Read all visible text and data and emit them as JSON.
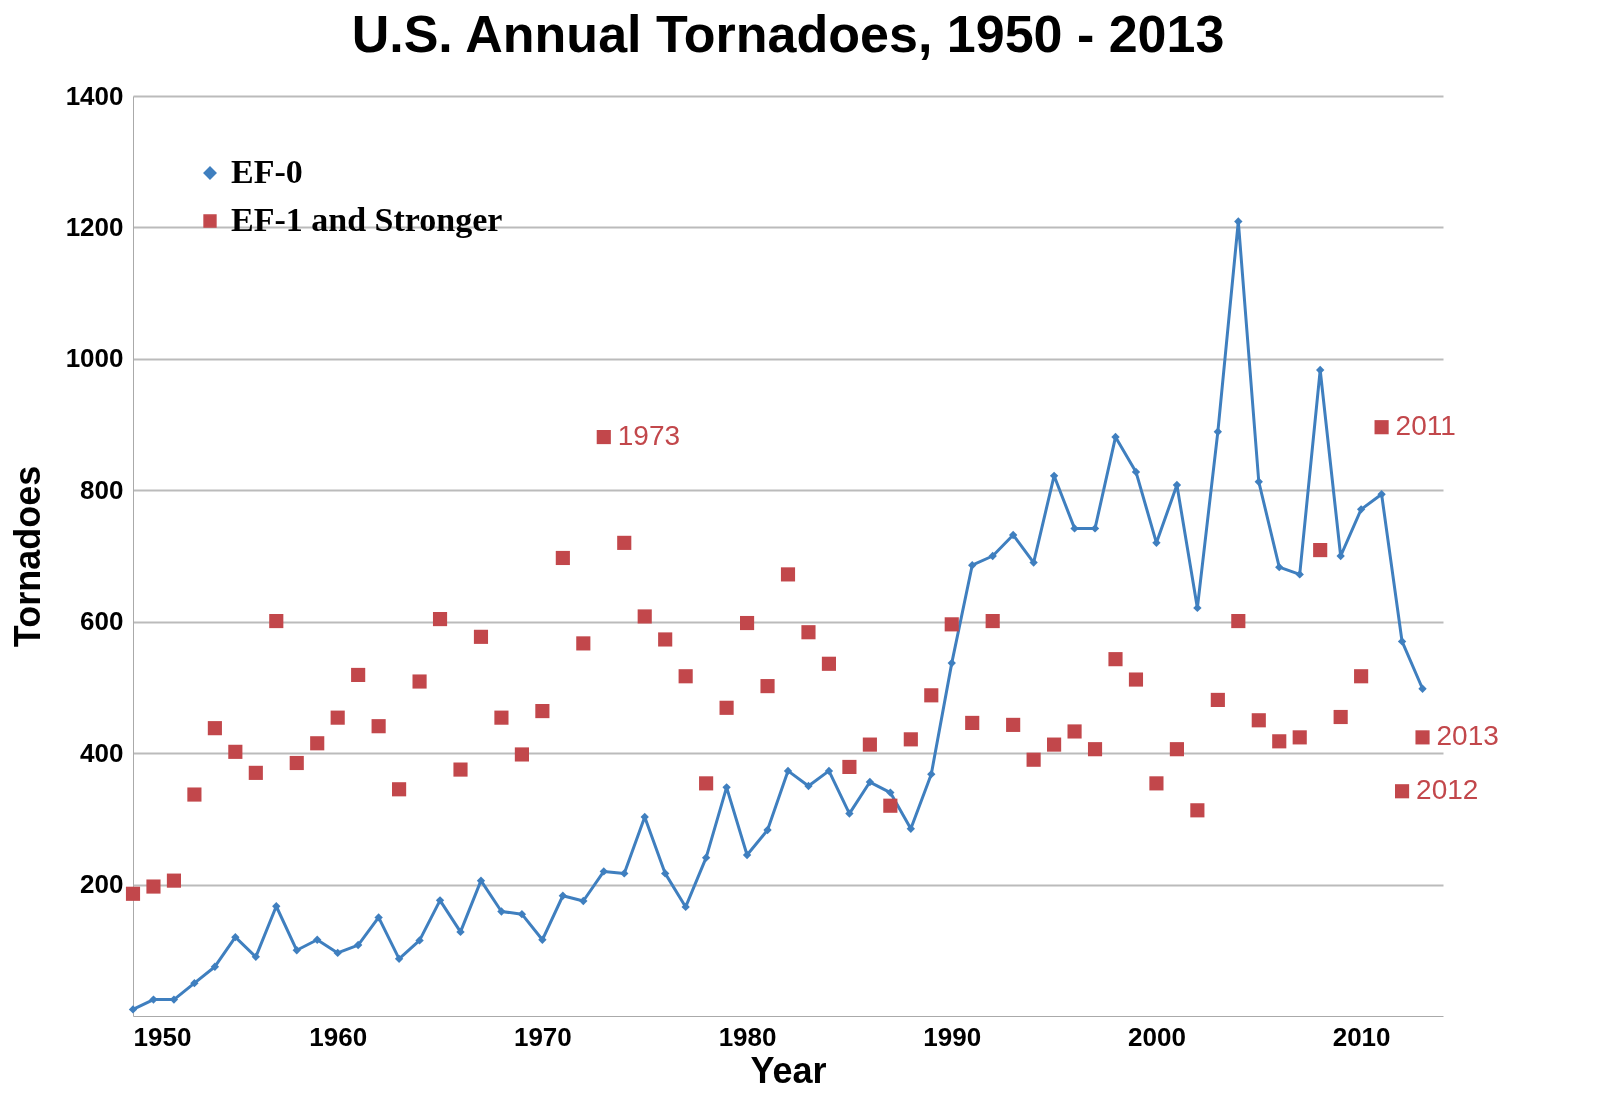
{
  "chart_data": {
    "type": "line",
    "title": "U.S. Annual Tornadoes, 1950 - 2013",
    "xlabel": "Year",
    "ylabel": "Tornadoes",
    "x": [
      1950,
      1951,
      1952,
      1953,
      1954,
      1955,
      1956,
      1957,
      1958,
      1959,
      1960,
      1961,
      1962,
      1963,
      1964,
      1965,
      1966,
      1967,
      1968,
      1969,
      1970,
      1971,
      1972,
      1973,
      1974,
      1975,
      1976,
      1977,
      1978,
      1979,
      1980,
      1981,
      1982,
      1983,
      1984,
      1985,
      1986,
      1987,
      1988,
      1989,
      1990,
      1991,
      1992,
      1993,
      1994,
      1995,
      1996,
      1997,
      1998,
      1999,
      2000,
      2001,
      2002,
      2003,
      2004,
      2005,
      2006,
      2007,
      2008,
      2009,
      2010,
      2011,
      2012,
      2013
    ],
    "series": [
      {
        "name": "EF-0",
        "marker": "diamond",
        "color": "#3f7fbf",
        "values": [
          10,
          25,
          25,
          50,
          75,
          120,
          90,
          167,
          100,
          116,
          96,
          108,
          150,
          87,
          115,
          176,
          128,
          206,
          159,
          155,
          116,
          183,
          175,
          220,
          217,
          303,
          217,
          166,
          241,
          348,
          245,
          283,
          373,
          350,
          373,
          308,
          356,
          340,
          285,
          368,
          537,
          686,
          700,
          732,
          690,
          822,
          742,
          742,
          881,
          828,
          720,
          808,
          621,
          889,
          1209,
          813,
          683,
          672,
          983,
          700,
          771,
          794,
          570,
          498
        ]
      },
      {
        "name": "EF-1 and Stronger",
        "type": "scatter",
        "marker": "square",
        "color": "#c2474b",
        "values": [
          186,
          197,
          206,
          337,
          438,
          402,
          370,
          601,
          385,
          415,
          454,
          519,
          441,
          345,
          509,
          604,
          375,
          577,
          454,
          398,
          464,
          697,
          567,
          881,
          720,
          608,
          573,
          517,
          354,
          469,
          598,
          502,
          672,
          584,
          536,
          379,
          413,
          320,
          421,
          488,
          596,
          446,
          601,
          443,
          390,
          413,
          433,
          406,
          543,
          512,
          354,
          406,
          313,
          481,
          601,
          450,
          418,
          424,
          709,
          455,
          517,
          896,
          342,
          424
        ]
      }
    ],
    "annotations": [
      {
        "text": "1973",
        "x": 1973,
        "y": 881
      },
      {
        "text": "2011",
        "x": 2011,
        "y": 896
      },
      {
        "text": "2012",
        "x": 2012,
        "y": 342
      },
      {
        "text": "2013",
        "x": 2013,
        "y": 424
      }
    ],
    "xlim": [
      1950,
      2014
    ],
    "xticks": [
      1950,
      1960,
      1970,
      1980,
      1990,
      2000,
      2010
    ],
    "ylim": [
      0,
      1400
    ],
    "yticks": [
      200,
      400,
      600,
      800,
      1000,
      1200,
      1400
    ],
    "grid": "y",
    "legend": "top left"
  }
}
